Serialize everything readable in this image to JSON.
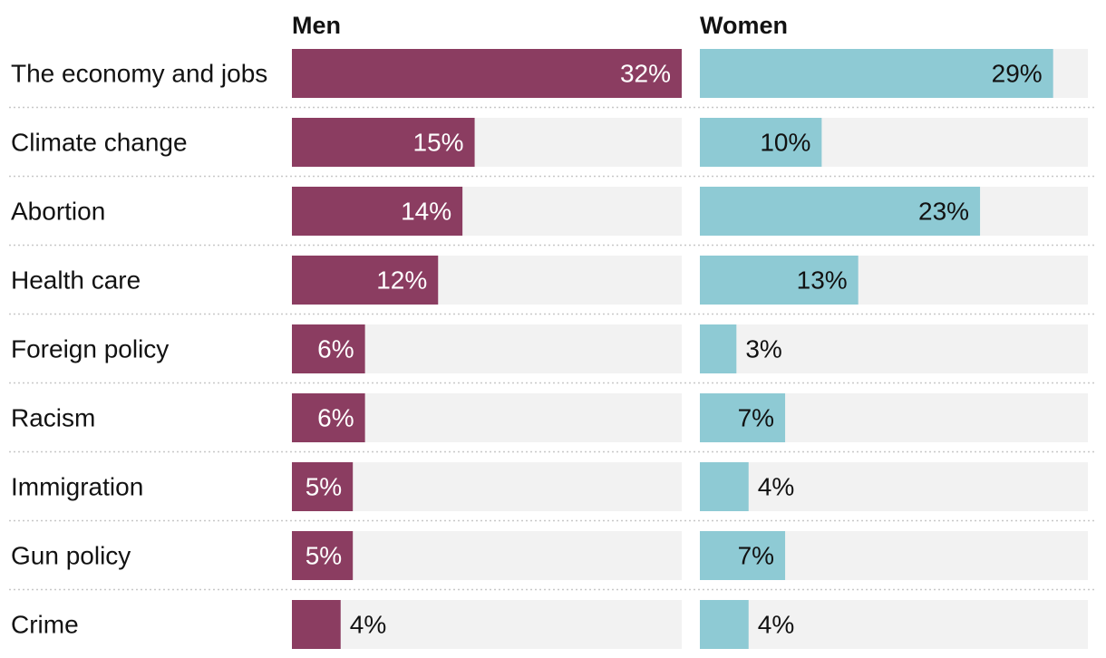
{
  "chart_data": {
    "type": "bar",
    "layout": "small-multiples-horizontal",
    "xlim": [
      0,
      32
    ],
    "value_suffix": "%",
    "categories": [
      "The economy and jobs",
      "Climate change",
      "Abortion",
      "Health care",
      "Foreign policy",
      "Racism",
      "Immigration",
      "Gun policy",
      "Crime"
    ],
    "series": [
      {
        "name": "Men",
        "color": "#8b3d61",
        "values": [
          32,
          15,
          14,
          12,
          6,
          6,
          5,
          5,
          4
        ],
        "labels": [
          "32%",
          "15%",
          "14%",
          "12%",
          "6%",
          "6%",
          "5%",
          "5%",
          "4%"
        ]
      },
      {
        "name": "Women",
        "color": "#8ecad4",
        "values": [
          29,
          10,
          23,
          13,
          3,
          7,
          4,
          7,
          4
        ],
        "labels": [
          "29%",
          "10%",
          "23%",
          "13%",
          "3%",
          "7%",
          "4%",
          "7%",
          "4%"
        ]
      }
    ],
    "track_color": "#f2f2f2",
    "separator_color": "#c8c8c8"
  }
}
